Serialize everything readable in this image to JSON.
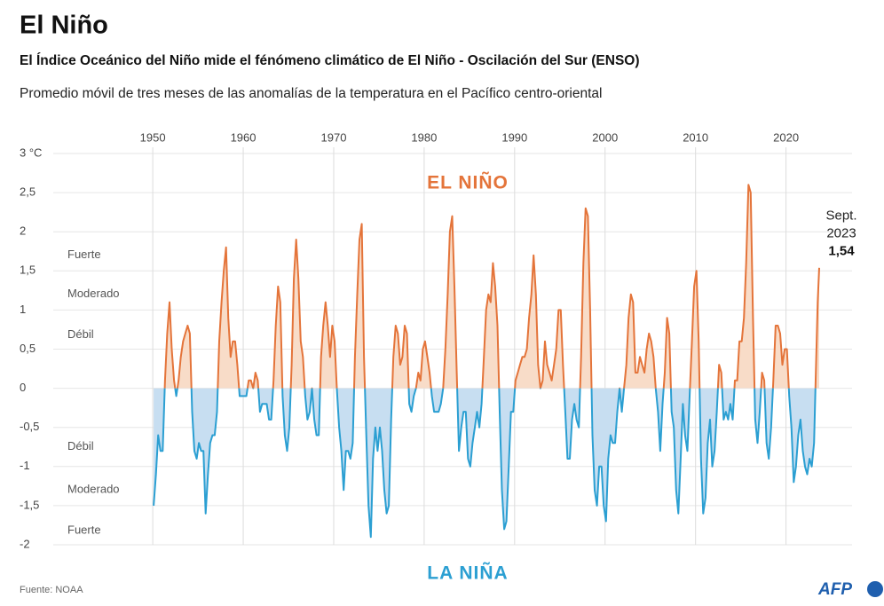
{
  "chart_data": {
    "type": "line",
    "title": "El Niño",
    "subtitle": "El Índice Oceánico del Niño mide el fénómeno climático de El Niño - Oscilación del Sur (ENSO)",
    "description": "Promedio móvil de tres meses de las anomalías de la temperatura en el Pacífico centro-oriental",
    "source": "Fuente: NOAA",
    "logo": "AFP",
    "annotations": {
      "el_nino": "EL NIÑO",
      "la_nina": "LA NIÑA",
      "positive": [
        {
          "text": "Fuerte",
          "y": 1.7
        },
        {
          "text": "Moderado",
          "y": 1.2
        },
        {
          "text": "Débil",
          "y": 0.68
        }
      ],
      "negative": [
        {
          "text": "Débil",
          "y": -0.75
        },
        {
          "text": "Moderado",
          "y": -1.3
        },
        {
          "text": "Fuerte",
          "y": -1.82
        }
      ],
      "last": {
        "lines": [
          "Sept.",
          "2023"
        ],
        "value_label": "1,54"
      }
    },
    "xlim": [
      1939,
      2027.3
    ],
    "xticks": [
      1950,
      1960,
      1970,
      1980,
      1990,
      2000,
      2010,
      2020
    ],
    "ylim": [
      -2,
      3
    ],
    "yticks": [
      {
        "value": -2,
        "label": "-2"
      },
      {
        "value": -1.5,
        "label": "-1,5"
      },
      {
        "value": -1,
        "label": "-1"
      },
      {
        "value": -0.5,
        "label": "-0,5"
      },
      0,
      {
        "value": 0.5,
        "label": "0,5"
      },
      1,
      {
        "value": 1.5,
        "label": "1,5"
      },
      2,
      {
        "value": 2.5,
        "label": "2,5"
      },
      {
        "value": 3,
        "label": "3 °C"
      }
    ],
    "grid": true,
    "series": [
      {
        "name": "ONI",
        "color_positive": "#e4743a",
        "color_negative": "#2b9fd2",
        "fill_positive": "#f8dcc8",
        "fill_negative": "#c7def1",
        "x": [
          1950.1,
          1950.35,
          1950.6,
          1950.85,
          1951.1,
          1951.35,
          1951.6,
          1951.85,
          1952.1,
          1952.35,
          1952.6,
          1952.85,
          1953.1,
          1953.35,
          1953.6,
          1953.85,
          1954.1,
          1954.35,
          1954.6,
          1954.85,
          1955.1,
          1955.35,
          1955.6,
          1955.85,
          1956.1,
          1956.35,
          1956.6,
          1956.85,
          1957.1,
          1957.35,
          1957.6,
          1957.85,
          1958.1,
          1958.35,
          1958.6,
          1958.85,
          1959.1,
          1959.35,
          1959.6,
          1959.85,
          1960.1,
          1960.35,
          1960.6,
          1960.85,
          1961.1,
          1961.35,
          1961.6,
          1961.85,
          1962.1,
          1962.35,
          1962.6,
          1962.85,
          1963.1,
          1963.35,
          1963.6,
          1963.85,
          1964.1,
          1964.35,
          1964.6,
          1964.85,
          1965.1,
          1965.35,
          1965.6,
          1965.85,
          1966.1,
          1966.35,
          1966.6,
          1966.85,
          1967.1,
          1967.35,
          1967.6,
          1967.85,
          1968.1,
          1968.35,
          1968.6,
          1968.85,
          1969.1,
          1969.35,
          1969.6,
          1969.85,
          1970.1,
          1970.35,
          1970.6,
          1970.85,
          1971.1,
          1971.35,
          1971.6,
          1971.85,
          1972.1,
          1972.35,
          1972.6,
          1972.85,
          1973.1,
          1973.35,
          1973.6,
          1973.85,
          1974.1,
          1974.35,
          1974.6,
          1974.85,
          1975.1,
          1975.35,
          1975.6,
          1975.85,
          1976.1,
          1976.35,
          1976.6,
          1976.85,
          1977.1,
          1977.35,
          1977.6,
          1977.85,
          1978.1,
          1978.35,
          1978.6,
          1978.85,
          1979.1,
          1979.35,
          1979.6,
          1979.85,
          1980.1,
          1980.35,
          1980.6,
          1980.85,
          1981.1,
          1981.35,
          1981.6,
          1981.85,
          1982.1,
          1982.35,
          1982.6,
          1982.85,
          1983.1,
          1983.35,
          1983.6,
          1983.85,
          1984.1,
          1984.35,
          1984.6,
          1984.85,
          1985.1,
          1985.35,
          1985.6,
          1985.85,
          1986.1,
          1986.35,
          1986.6,
          1986.85,
          1987.1,
          1987.35,
          1987.6,
          1987.85,
          1988.1,
          1988.35,
          1988.6,
          1988.85,
          1989.1,
          1989.35,
          1989.6,
          1989.85,
          1990.1,
          1990.35,
          1990.6,
          1990.85,
          1991.1,
          1991.35,
          1991.6,
          1991.85,
          1992.1,
          1992.35,
          1992.6,
          1992.85,
          1993.1,
          1993.35,
          1993.6,
          1993.85,
          1994.1,
          1994.35,
          1994.6,
          1994.85,
          1995.1,
          1995.35,
          1995.6,
          1995.85,
          1996.1,
          1996.35,
          1996.6,
          1996.85,
          1997.1,
          1997.35,
          1997.6,
          1997.85,
          1998.1,
          1998.35,
          1998.6,
          1998.85,
          1999.1,
          1999.35,
          1999.6,
          1999.85,
          2000.1,
          2000.35,
          2000.6,
          2000.85,
          2001.1,
          2001.35,
          2001.6,
          2001.85,
          2002.1,
          2002.35,
          2002.6,
          2002.85,
          2003.1,
          2003.35,
          2003.6,
          2003.85,
          2004.1,
          2004.35,
          2004.6,
          2004.85,
          2005.1,
          2005.35,
          2005.6,
          2005.85,
          2006.1,
          2006.35,
          2006.6,
          2006.85,
          2007.1,
          2007.35,
          2007.6,
          2007.85,
          2008.1,
          2008.35,
          2008.6,
          2008.85,
          2009.1,
          2009.35,
          2009.6,
          2009.85,
          2010.1,
          2010.35,
          2010.6,
          2010.85,
          2011.1,
          2011.35,
          2011.6,
          2011.85,
          2012.1,
          2012.35,
          2012.6,
          2012.85,
          2013.1,
          2013.35,
          2013.6,
          2013.85,
          2014.1,
          2014.35,
          2014.6,
          2014.85,
          2015.1,
          2015.35,
          2015.6,
          2015.85,
          2016.1,
          2016.35,
          2016.6,
          2016.85,
          2017.1,
          2017.35,
          2017.6,
          2017.85,
          2018.1,
          2018.35,
          2018.6,
          2018.85,
          2019.1,
          2019.35,
          2019.6,
          2019.85,
          2020.1,
          2020.35,
          2020.6,
          2020.85,
          2021.1,
          2021.35,
          2021.6,
          2021.85,
          2022.1,
          2022.35,
          2022.6,
          2022.85,
          2023.1,
          2023.3,
          2023.5,
          2023.67
        ],
        "values": [
          -1.5,
          -1.1,
          -0.6,
          -0.8,
          -0.8,
          0.1,
          0.7,
          1.1,
          0.5,
          0.1,
          -0.1,
          0.1,
          0.4,
          0.6,
          0.7,
          0.8,
          0.7,
          -0.3,
          -0.8,
          -0.9,
          -0.7,
          -0.8,
          -0.8,
          -1.6,
          -1.1,
          -0.7,
          -0.6,
          -0.6,
          -0.3,
          0.6,
          1.1,
          1.5,
          1.8,
          0.9,
          0.4,
          0.6,
          0.6,
          0.3,
          -0.1,
          -0.1,
          -0.1,
          -0.1,
          0.1,
          0.1,
          0.0,
          0.2,
          0.1,
          -0.3,
          -0.2,
          -0.2,
          -0.2,
          -0.4,
          -0.4,
          0.1,
          0.8,
          1.3,
          1.1,
          -0.1,
          -0.6,
          -0.8,
          -0.5,
          0.3,
          1.4,
          1.9,
          1.4,
          0.6,
          0.4,
          -0.1,
          -0.4,
          -0.3,
          0.0,
          -0.4,
          -0.6,
          -0.6,
          0.4,
          0.8,
          1.1,
          0.8,
          0.4,
          0.8,
          0.6,
          0.0,
          -0.5,
          -0.8,
          -1.3,
          -0.8,
          -0.8,
          -0.9,
          -0.7,
          0.4,
          1.2,
          1.9,
          2.1,
          0.4,
          -0.6,
          -1.5,
          -1.9,
          -0.9,
          -0.5,
          -0.8,
          -0.5,
          -0.8,
          -1.3,
          -1.6,
          -1.5,
          -0.4,
          0.4,
          0.8,
          0.7,
          0.3,
          0.4,
          0.8,
          0.7,
          -0.2,
          -0.3,
          -0.1,
          0.0,
          0.2,
          0.1,
          0.5,
          0.6,
          0.4,
          0.2,
          -0.1,
          -0.3,
          -0.3,
          -0.3,
          -0.2,
          0.0,
          0.5,
          1.2,
          2.0,
          2.2,
          1.3,
          0.2,
          -0.8,
          -0.5,
          -0.3,
          -0.3,
          -0.9,
          -1.0,
          -0.7,
          -0.5,
          -0.3,
          -0.5,
          -0.2,
          0.4,
          1.0,
          1.2,
          1.1,
          1.6,
          1.3,
          0.8,
          -0.3,
          -1.3,
          -1.8,
          -1.7,
          -1.0,
          -0.3,
          -0.3,
          0.1,
          0.2,
          0.3,
          0.4,
          0.4,
          0.5,
          0.9,
          1.2,
          1.7,
          1.2,
          0.3,
          0.0,
          0.1,
          0.6,
          0.3,
          0.2,
          0.1,
          0.3,
          0.5,
          1.0,
          1.0,
          0.3,
          -0.3,
          -0.9,
          -0.9,
          -0.4,
          -0.2,
          -0.4,
          -0.5,
          0.4,
          1.6,
          2.3,
          2.2,
          1.0,
          -0.6,
          -1.3,
          -1.5,
          -1.0,
          -1.0,
          -1.5,
          -1.7,
          -0.9,
          -0.6,
          -0.7,
          -0.7,
          -0.3,
          0.0,
          -0.3,
          0.0,
          0.3,
          0.9,
          1.2,
          1.1,
          0.2,
          0.2,
          0.4,
          0.3,
          0.2,
          0.5,
          0.7,
          0.6,
          0.4,
          0.0,
          -0.3,
          -0.8,
          -0.2,
          0.2,
          0.9,
          0.7,
          -0.3,
          -0.5,
          -1.3,
          -1.6,
          -0.9,
          -0.2,
          -0.6,
          -0.8,
          -0.1,
          0.6,
          1.3,
          1.5,
          0.6,
          -0.9,
          -1.6,
          -1.4,
          -0.7,
          -0.4,
          -1.0,
          -0.8,
          -0.3,
          0.3,
          0.2,
          -0.4,
          -0.3,
          -0.4,
          -0.2,
          -0.4,
          0.1,
          0.1,
          0.6,
          0.6,
          0.9,
          1.6,
          2.6,
          2.5,
          0.9,
          -0.4,
          -0.7,
          -0.3,
          0.2,
          0.1,
          -0.7,
          -0.9,
          -0.5,
          0.1,
          0.8,
          0.8,
          0.7,
          0.3,
          0.5,
          0.5,
          -0.1,
          -0.5,
          -1.2,
          -1.0,
          -0.6,
          -0.4,
          -0.8,
          -1.0,
          -1.1,
          -0.9,
          -1.0,
          -0.7,
          0.2,
          1.1,
          1.54
        ]
      }
    ]
  }
}
